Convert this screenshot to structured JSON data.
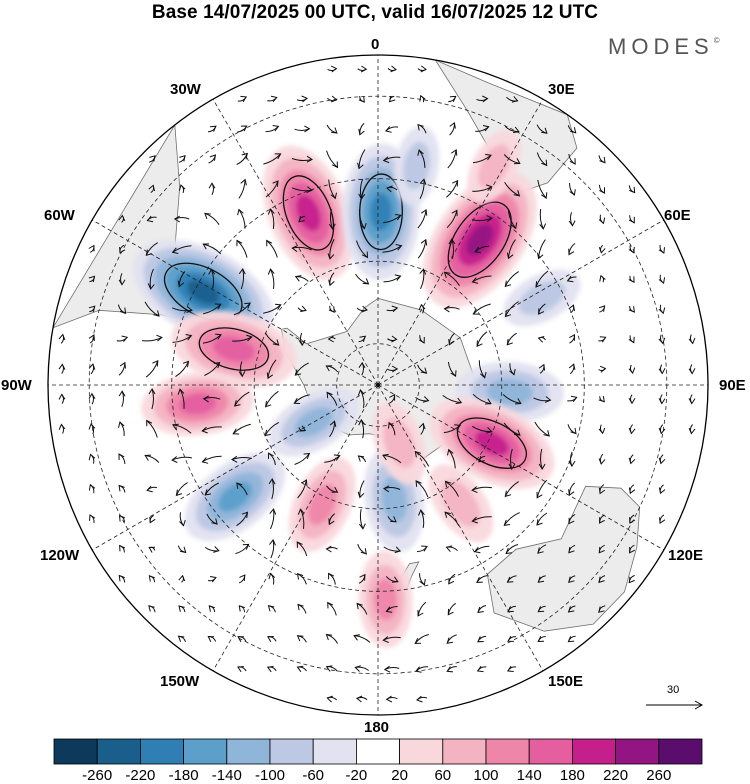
{
  "title": "Base 14/07/2025 00 UTC, valid 16/07/2025 12 UTC",
  "brand": {
    "text": "MODES",
    "mark": "©"
  },
  "longitude_labels": {
    "lon_0": "0",
    "lon_30e": "30E",
    "lon_60e": "60E",
    "lon_90e": "90E",
    "lon_120e": "120E",
    "lon_150e": "150E",
    "lon_180": "180",
    "lon_150w": "150W",
    "lon_120w": "120W",
    "lon_90w": "90W",
    "lon_60w": "60W",
    "lon_30w": "30W"
  },
  "reference_vector": {
    "value": "30"
  },
  "colorbar": {
    "colors": [
      "#0d3a5a",
      "#1a5f8c",
      "#2f7fb5",
      "#5b9fca",
      "#8fb5d9",
      "#bcc8e4",
      "#e2e2f0",
      "#ffffff",
      "#f9d8dd",
      "#f4b3c3",
      "#ee86aa",
      "#e45ea0",
      "#c51f8c",
      "#921583",
      "#5b0d6e"
    ],
    "labels": [
      "-260",
      "-220",
      "-180",
      "-140",
      "-100",
      "-60",
      "-20",
      "20",
      "60",
      "100",
      "140",
      "180",
      "220",
      "260"
    ]
  },
  "anomalies": [
    {
      "name": "anomaly-positive-30w",
      "lon": -22,
      "lat": -45,
      "value": 185
    },
    {
      "name": "anomaly-negative-0",
      "lon": 1,
      "lat": -48,
      "value": -175
    },
    {
      "name": "anomaly-positive-35e",
      "lon": 35,
      "lat": -47,
      "value": 215
    },
    {
      "name": "anomaly-negative-60w",
      "lon": -62,
      "lat": -42,
      "value": -210
    },
    {
      "name": "anomaly-positive-75w",
      "lon": -76,
      "lat": -54,
      "value": 155
    },
    {
      "name": "anomaly-positive-95w",
      "lon": -96,
      "lat": -46,
      "value": 120
    },
    {
      "name": "anomaly-negative-95e",
      "lon": 93,
      "lat": -58,
      "value": -110
    },
    {
      "name": "anomaly-positive-115e",
      "lon": 117,
      "lat": -59,
      "value": 170
    },
    {
      "name": "anomaly-negative-125w",
      "lon": -128,
      "lat": -46,
      "value": -130
    },
    {
      "name": "anomaly-positive-155w",
      "lon": -155,
      "lat": -58,
      "value": 95
    },
    {
      "name": "anomaly-negative-170e",
      "lon": 172,
      "lat": -62,
      "value": -105
    },
    {
      "name": "anomaly-positive-180",
      "lon": 178,
      "lat": -38,
      "value": 85
    },
    {
      "name": "anomaly-positive-145e",
      "lon": 145,
      "lat": -55,
      "value": 65
    },
    {
      "name": "anomaly-negative-130w",
      "lon": -120,
      "lat": -72,
      "value": -90
    },
    {
      "name": "anomaly-positive-160e",
      "lon": 160,
      "lat": -75,
      "value": 60
    },
    {
      "name": "anomaly-negative-60e",
      "lon": 62,
      "lat": -45,
      "value": -55
    },
    {
      "name": "anomaly-negative-10e",
      "lon": 10,
      "lat": -36,
      "value": -45
    },
    {
      "name": "anomaly-positive-30e-north",
      "lon": 28,
      "lat": -30,
      "value": 45
    }
  ]
}
